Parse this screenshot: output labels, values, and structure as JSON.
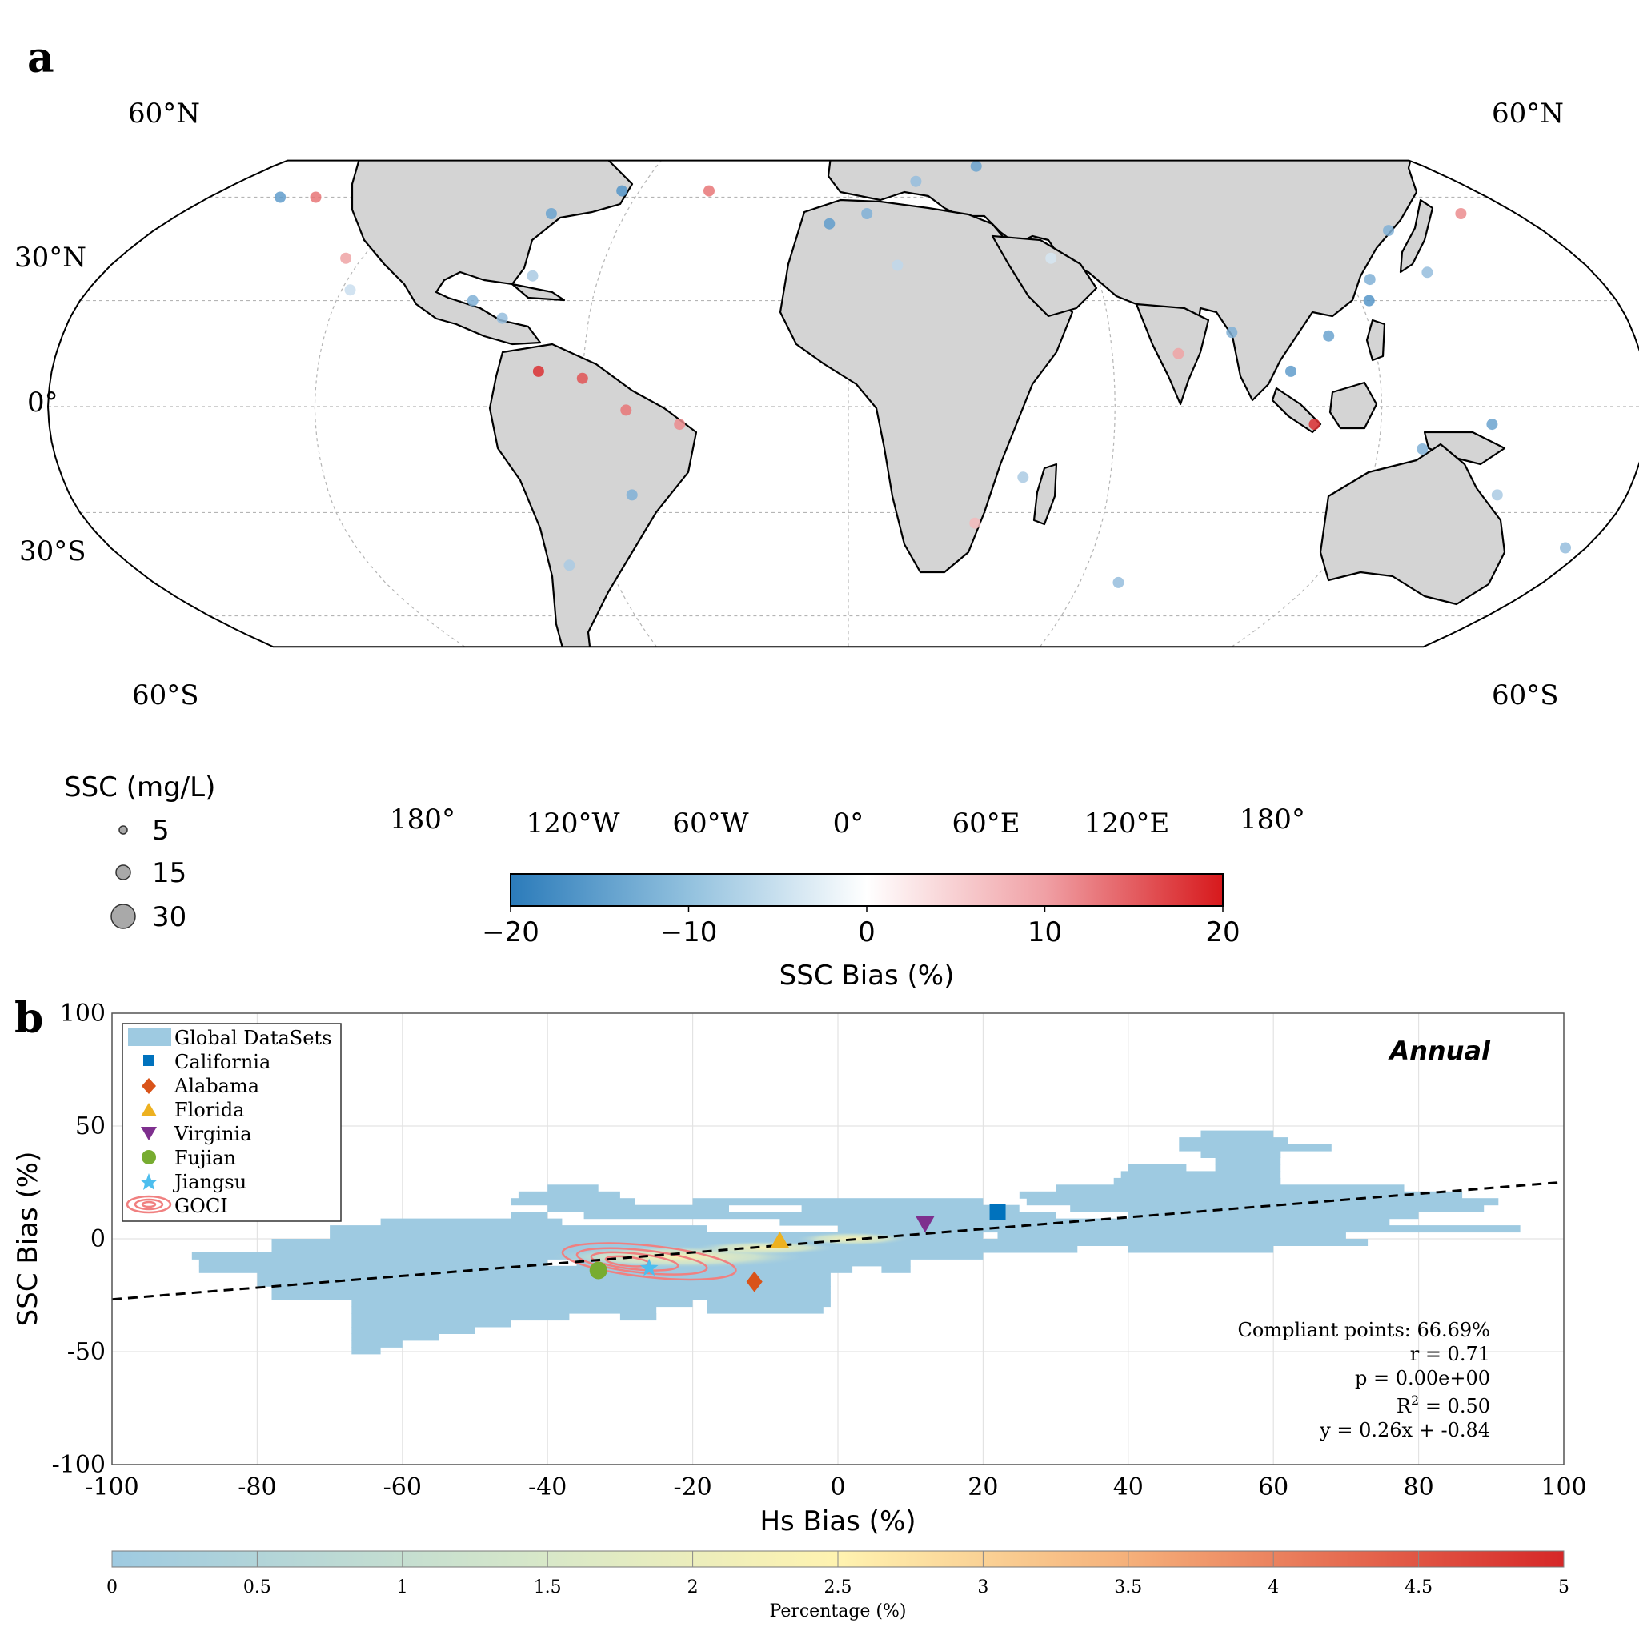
{
  "colors": {
    "land": "#d4d4d4",
    "neg_bias": "#2b7bba",
    "pos_bias": "#d7191c",
    "hist_base": "#9ecae1",
    "goci": "#f08080",
    "trend": "#000000"
  },
  "chart_data": [
    {
      "panel_label": "a",
      "type": "map",
      "projection": "robinson",
      "lat_labels": [
        "60°N",
        "30°N",
        "0°",
        "30°S",
        "60°S"
      ],
      "lat_values": [
        60,
        30,
        0,
        -30,
        -60
      ],
      "lat_labels_right": [
        "60°N",
        "60°S"
      ],
      "lon_labels": [
        "180°",
        "120°W",
        "60°W",
        "0°",
        "60°E",
        "120°E",
        "180°"
      ],
      "lon_values": [
        -180,
        -120,
        -60,
        0,
        60,
        120,
        180
      ],
      "size_legend": {
        "title": "SSC (mg/L)",
        "entries": [
          {
            "label": "5",
            "value": 5
          },
          {
            "label": "15",
            "value": 15
          },
          {
            "label": "30",
            "value": 30
          }
        ]
      },
      "colorbar": {
        "label": "SSC Bias (%)",
        "range": [
          -20,
          20
        ],
        "ticks": [
          -20,
          -10,
          0,
          10,
          20
        ],
        "tick_labels": [
          "−20",
          "−10",
          "0",
          "10",
          "20"
        ],
        "colormap": "blue-white-red"
      },
      "sample_points": [
        {
          "lon": -160,
          "lat": 60,
          "bias": -15
        },
        {
          "lon": -150,
          "lat": 60,
          "bias": 12
        },
        {
          "lon": -124,
          "lat": 42,
          "bias": 8
        },
        {
          "lon": -118,
          "lat": 33,
          "bias": -5
        },
        {
          "lon": -76,
          "lat": 37,
          "bias": -8
        },
        {
          "lon": -80,
          "lat": 25,
          "bias": -10
        },
        {
          "lon": -88,
          "lat": 30,
          "bias": -12
        },
        {
          "lon": -70,
          "lat": 10,
          "bias": 18
        },
        {
          "lon": -60,
          "lat": 8,
          "bias": 15
        },
        {
          "lon": -50,
          "lat": -1,
          "bias": 12
        },
        {
          "lon": -38,
          "lat": -5,
          "bias": 10
        },
        {
          "lon": -50,
          "lat": -25,
          "bias": -12
        },
        {
          "lon": -70,
          "lat": -45,
          "bias": -8
        },
        {
          "lon": -65,
          "lat": 62,
          "bias": -16
        },
        {
          "lon": -80,
          "lat": 55,
          "bias": -14
        },
        {
          "lon": -5,
          "lat": 52,
          "bias": -15
        },
        {
          "lon": 5,
          "lat": 55,
          "bias": -12
        },
        {
          "lon": 20,
          "lat": 65,
          "bias": -10
        },
        {
          "lon": 40,
          "lat": 70,
          "bias": -14
        },
        {
          "lon": 12,
          "lat": 40,
          "bias": -6
        },
        {
          "lon": 50,
          "lat": 42,
          "bias": -4
        },
        {
          "lon": 75,
          "lat": 15,
          "bias": 8
        },
        {
          "lon": 88,
          "lat": 21,
          "bias": -12
        },
        {
          "lon": 100,
          "lat": 10,
          "bias": -15
        },
        {
          "lon": 105,
          "lat": -5,
          "bias": 18
        },
        {
          "lon": 110,
          "lat": 20,
          "bias": -14
        },
        {
          "lon": 122,
          "lat": 30,
          "bias": -16
        },
        {
          "lon": 125,
          "lat": 36,
          "bias": -12
        },
        {
          "lon": 140,
          "lat": 38,
          "bias": -10
        },
        {
          "lon": 145,
          "lat": -5,
          "bias": -14
        },
        {
          "lon": 130,
          "lat": -12,
          "bias": -12
        },
        {
          "lon": 150,
          "lat": -25,
          "bias": -8
        },
        {
          "lon": 175,
          "lat": -40,
          "bias": -10
        },
        {
          "lon": 140,
          "lat": 50,
          "bias": -12
        },
        {
          "lon": 165,
          "lat": 55,
          "bias": 10
        },
        {
          "lon": 40,
          "lat": -20,
          "bias": -8
        },
        {
          "lon": 70,
          "lat": -50,
          "bias": -10
        },
        {
          "lon": -40,
          "lat": 62,
          "bias": 12
        },
        {
          "lon": 30,
          "lat": -33,
          "bias": 6
        }
      ]
    },
    {
      "panel_label": "b",
      "type": "heatmap",
      "xlabel": "Hs Bias (%)",
      "ylabel": "SSC Bias (%)",
      "xlim": [
        -100,
        100
      ],
      "ylim": [
        -100,
        100
      ],
      "xticks": [
        -100,
        -80,
        -60,
        -40,
        -20,
        0,
        20,
        40,
        60,
        80,
        100
      ],
      "yticks": [
        -100,
        -50,
        0,
        50,
        100
      ],
      "grid": true,
      "annotation": "Annual",
      "legend": {
        "position": "top-left",
        "entries": [
          {
            "label": "Global DataSets",
            "marker": "patch",
            "color": "#9ecae1"
          },
          {
            "label": "California",
            "marker": "square",
            "color": "#0072bd"
          },
          {
            "label": "Alabama",
            "marker": "diamond",
            "color": "#d95319"
          },
          {
            "label": "Florida",
            "marker": "triangle-up",
            "color": "#edb120"
          },
          {
            "label": "Virginia",
            "marker": "triangle-down",
            "color": "#7e2f8e"
          },
          {
            "label": "Fujian",
            "marker": "circle",
            "color": "#77ac30"
          },
          {
            "label": "Jiangsu",
            "marker": "star",
            "color": "#4dbeee"
          },
          {
            "label": "GOCI",
            "marker": "contour",
            "color": "#f08080"
          }
        ]
      },
      "regions": [
        {
          "name": "California",
          "x": 22,
          "y": 12
        },
        {
          "name": "Alabama",
          "x": -11.5,
          "y": -19
        },
        {
          "name": "Florida",
          "x": -8,
          "y": -1
        },
        {
          "name": "Virginia",
          "x": 12,
          "y": 7
        },
        {
          "name": "Fujian",
          "x": -33,
          "y": -14
        },
        {
          "name": "Jiangsu",
          "x": -26,
          "y": -13
        }
      ],
      "density_rows": [
        {
          "y0": 45,
          "y1": 48,
          "segments": [
            [
              50,
              60
            ]
          ]
        },
        {
          "y0": 42,
          "y1": 45,
          "segments": [
            [
              47,
              62
            ]
          ]
        },
        {
          "y0": 39,
          "y1": 42,
          "segments": [
            [
              47,
              68
            ]
          ]
        },
        {
          "y0": 36,
          "y1": 39,
          "segments": [
            [
              50,
              61
            ]
          ]
        },
        {
          "y0": 33,
          "y1": 36,
          "segments": [
            [
              52,
              61
            ]
          ]
        },
        {
          "y0": 30,
          "y1": 33,
          "segments": [
            [
              40,
              48
            ],
            [
              52,
              61
            ]
          ]
        },
        {
          "y0": 27,
          "y1": 30,
          "segments": [
            [
              39,
              61
            ]
          ]
        },
        {
          "y0": 24,
          "y1": 27,
          "segments": [
            [
              38,
              61
            ]
          ]
        },
        {
          "y0": 21,
          "y1": 24,
          "segments": [
            [
              -40,
              -33
            ],
            [
              30,
              78
            ]
          ]
        },
        {
          "y0": 18,
          "y1": 21,
          "segments": [
            [
              -44,
              -30
            ],
            [
              25,
              86
            ]
          ]
        },
        {
          "y0": 15,
          "y1": 18,
          "segments": [
            [
              -45,
              -28
            ],
            [
              -20,
              20
            ],
            [
              26,
              91
            ]
          ]
        },
        {
          "y0": 12,
          "y1": 15,
          "segments": [
            [
              -40,
              -15
            ],
            [
              -5,
              25
            ],
            [
              32,
              89
            ]
          ]
        },
        {
          "y0": 9,
          "y1": 12,
          "segments": [
            [
              -45,
              -40
            ],
            [
              -35,
              30
            ],
            [
              40,
              80
            ]
          ]
        },
        {
          "y0": 6,
          "y1": 9,
          "segments": [
            [
              -63,
              -38
            ],
            [
              -8,
              76
            ]
          ]
        },
        {
          "y0": 3,
          "y1": 6,
          "segments": [
            [
              -70,
              -18
            ],
            [
              0,
              94
            ]
          ]
        },
        {
          "y0": 0,
          "y1": 3,
          "segments": [
            [
              -70,
              20
            ],
            [
              22,
              70
            ]
          ]
        },
        {
          "y0": -3,
          "y1": 0,
          "segments": [
            [
              -78,
              73
            ]
          ]
        },
        {
          "y0": -6,
          "y1": -3,
          "segments": [
            [
              -78,
              33
            ],
            [
              40,
              60
            ]
          ]
        },
        {
          "y0": -9,
          "y1": -6,
          "segments": [
            [
              -89,
              20
            ]
          ]
        },
        {
          "y0": -12,
          "y1": -9,
          "segments": [
            [
              -88,
              -40
            ],
            [
              -36,
              10
            ]
          ]
        },
        {
          "y0": -15,
          "y1": -12,
          "segments": [
            [
              -88,
              2
            ],
            [
              6,
              10
            ]
          ]
        },
        {
          "y0": -18,
          "y1": -15,
          "segments": [
            [
              -80,
              -1
            ]
          ]
        },
        {
          "y0": -21,
          "y1": -18,
          "segments": [
            [
              -80,
              -1
            ]
          ]
        },
        {
          "y0": -24,
          "y1": -21,
          "segments": [
            [
              -78,
              -1
            ]
          ]
        },
        {
          "y0": -27,
          "y1": -24,
          "segments": [
            [
              -78,
              -1
            ]
          ]
        },
        {
          "y0": -30,
          "y1": -27,
          "segments": [
            [
              -67,
              -20
            ],
            [
              -18,
              -1
            ]
          ]
        },
        {
          "y0": -33,
          "y1": -30,
          "segments": [
            [
              -67,
              -25
            ],
            [
              -18,
              -2
            ]
          ]
        },
        {
          "y0": -36,
          "y1": -33,
          "segments": [
            [
              -67,
              -37
            ],
            [
              -30,
              -25
            ]
          ]
        },
        {
          "y0": -39,
          "y1": -36,
          "segments": [
            [
              -67,
              -45
            ]
          ]
        },
        {
          "y0": -42,
          "y1": -39,
          "segments": [
            [
              -67,
              -50
            ]
          ]
        },
        {
          "y0": -45,
          "y1": -42,
          "segments": [
            [
              -67,
              -55
            ]
          ]
        },
        {
          "y0": -48,
          "y1": -45,
          "segments": [
            [
              -67,
              -60
            ]
          ]
        },
        {
          "y0": -51,
          "y1": -48,
          "segments": [
            [
              -67,
              -63
            ]
          ]
        }
      ],
      "hot_spots": [
        {
          "x": -22,
          "y": -8,
          "rx": 18,
          "ry": 5,
          "value": 2.2
        },
        {
          "x": -10,
          "y": -4,
          "rx": 10,
          "ry": 3,
          "value": 2.0
        },
        {
          "x": 2,
          "y": 0,
          "rx": 8,
          "ry": 3,
          "value": 1.6
        }
      ],
      "goci_contours": [
        {
          "cx": -26,
          "cy": -10,
          "rx": 12,
          "ry": 7
        },
        {
          "cx": -27,
          "cy": -10,
          "rx": 9,
          "ry": 5
        },
        {
          "cx": -28,
          "cy": -10,
          "rx": 6,
          "ry": 3.5
        },
        {
          "cx": -29,
          "cy": -10,
          "rx": 3,
          "ry": 2
        }
      ],
      "trend": {
        "slope": 0.26,
        "intercept": -0.84,
        "style": "dashed"
      },
      "stats": [
        "Compliant points: 66.69%",
        "r = 0.71",
        "p = 0.00e+00",
        "R",
        "2",
        " = 0.50",
        "y = 0.26x + -0.84"
      ],
      "colorbar": {
        "label": "Percentage (%)",
        "range": [
          0,
          5
        ],
        "ticks": [
          0,
          0.5,
          1,
          1.5,
          2,
          2.5,
          3,
          3.5,
          4,
          4.5,
          5
        ],
        "tick_labels": [
          "0",
          "0.5",
          "1",
          "1.5",
          "2",
          "2.5",
          "3",
          "3.5",
          "4",
          "4.5",
          "5"
        ],
        "colormap": "blue-yellow-red"
      }
    }
  ]
}
